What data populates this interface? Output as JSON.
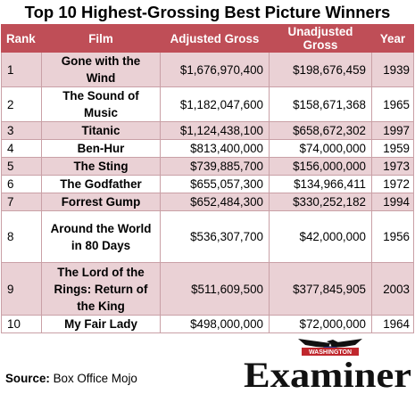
{
  "title": "Top 10 Highest-Grossing Best Picture Winners",
  "table": {
    "headers": [
      "Rank",
      "Film",
      "Adjusted Gross",
      "Unadjusted Gross",
      "Year"
    ],
    "rows": [
      {
        "rank": "1",
        "film": "Gone with the Wind",
        "adjusted": "$1,676,970,400",
        "unadjusted": "$198,676,459",
        "year": "1939"
      },
      {
        "rank": "2",
        "film": "The Sound of Music",
        "adjusted": "$1,182,047,600",
        "unadjusted": "$158,671,368",
        "year": "1965"
      },
      {
        "rank": "3",
        "film": "Titanic",
        "adjusted": "$1,124,438,100",
        "unadjusted": "$658,672,302",
        "year": "1997"
      },
      {
        "rank": "4",
        "film": "Ben-Hur",
        "adjusted": "$813,400,000",
        "unadjusted": "$74,000,000",
        "year": "1959"
      },
      {
        "rank": "5",
        "film": "The Sting",
        "adjusted": "$739,885,700",
        "unadjusted": "$156,000,000",
        "year": "1973"
      },
      {
        "rank": "6",
        "film": "The Godfather",
        "adjusted": "$655,057,300",
        "unadjusted": "$134,966,411",
        "year": "1972"
      },
      {
        "rank": "7",
        "film": "Forrest Gump",
        "adjusted": "$652,484,300",
        "unadjusted": "$330,252,182",
        "year": "1994"
      },
      {
        "rank": "8",
        "film": "Around the World in 80 Days",
        "adjusted": "$536,307,700",
        "unadjusted": "$42,000,000",
        "year": "1956"
      },
      {
        "rank": "9",
        "film": "The Lord of the Rings: Return of the King",
        "adjusted": "$511,609,500",
        "unadjusted": "$377,845,905",
        "year": "2003"
      },
      {
        "rank": "10",
        "film": "My Fair Lady",
        "adjusted": "$498,000,000",
        "unadjusted": "$72,000,000",
        "year": "1964"
      }
    ]
  },
  "source": {
    "label": "Source:",
    "text": "Box Office Mojo"
  },
  "logo": {
    "top_text": "WASHINGTON",
    "main_text": "Examiner"
  },
  "colors": {
    "header_bg": "#bf4e57",
    "band": "#ead1d5",
    "border": "#c9a0a6",
    "logo_red": "#c0272d"
  }
}
